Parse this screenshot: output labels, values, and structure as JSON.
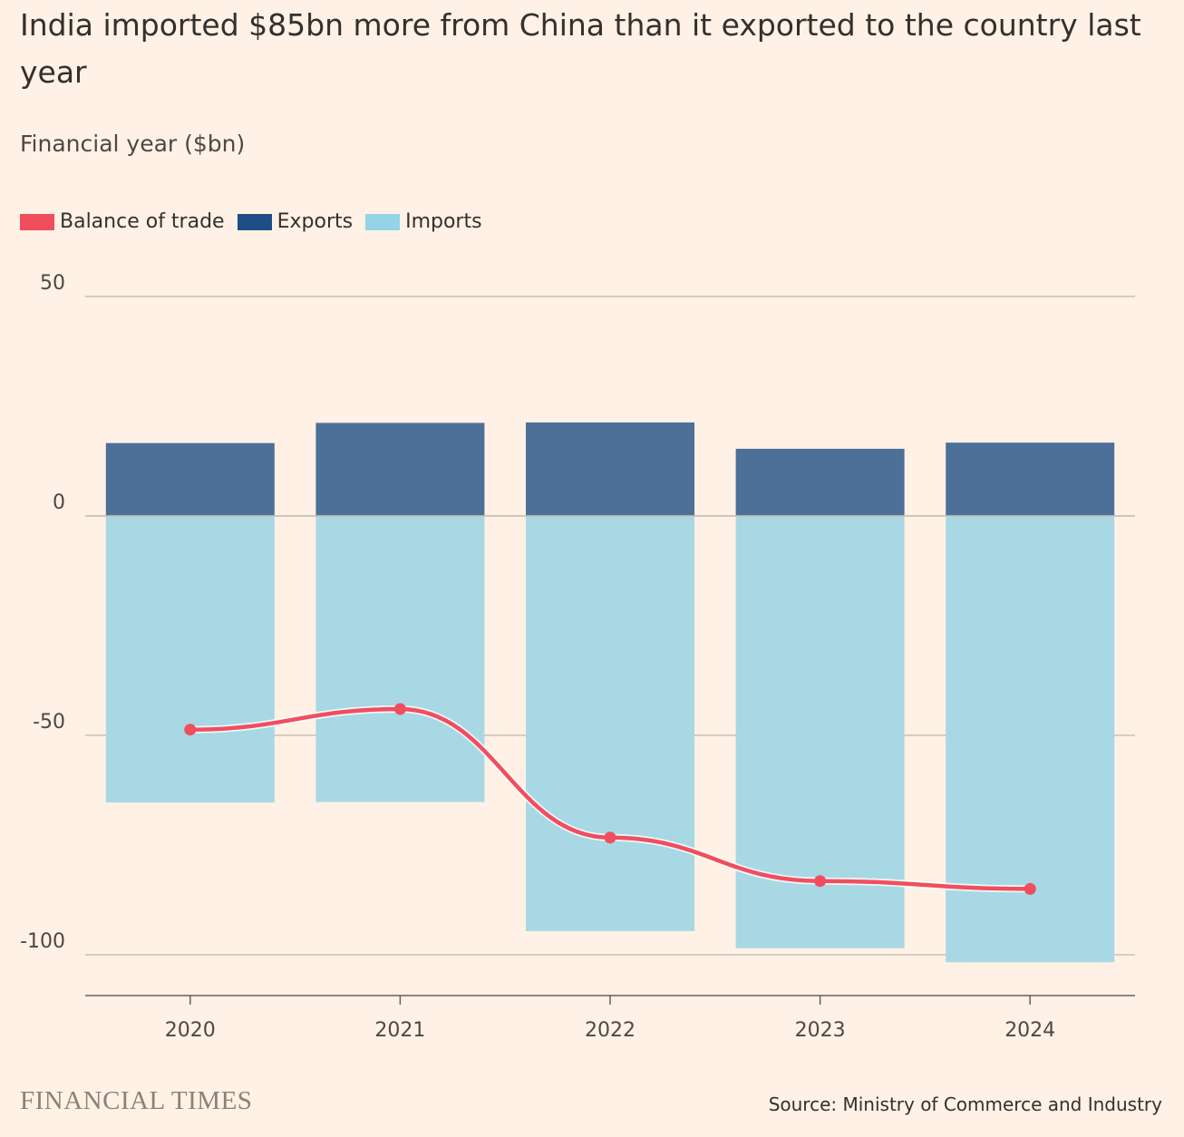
{
  "title": "India imported $85bn more from China than it exported to the country last year",
  "subtitle": "Financial year ($bn)",
  "legend": [
    {
      "label": "Balance of trade",
      "color": "#f04e5e"
    },
    {
      "label": "Exports",
      "color": "#1f4e87"
    },
    {
      "label": "Imports",
      "color": "#95d3e6"
    }
  ],
  "source": "Source: Ministry of Commerce and Industry",
  "logo": "FINANCIAL TIMES",
  "chart_data": {
    "type": "bar",
    "categories": [
      "2020",
      "2021",
      "2022",
      "2023",
      "2024"
    ],
    "series": [
      {
        "name": "Exports",
        "type": "bar",
        "color": "#4d7099",
        "values": [
          16.6,
          21.2,
          21.3,
          15.3,
          16.7
        ]
      },
      {
        "name": "Imports",
        "type": "bar",
        "color": "#a8d8e3",
        "values": [
          -65.3,
          -65.2,
          -94.6,
          -98.5,
          -101.7
        ]
      },
      {
        "name": "Balance of trade",
        "type": "line",
        "color": "#f04e5e",
        "values": [
          -48.7,
          -44.0,
          -73.3,
          -83.2,
          -85.0
        ]
      }
    ],
    "ylim": [
      -110,
      50
    ],
    "yticks": [
      50,
      0,
      -50,
      -100
    ],
    "ytick_labels": [
      "50",
      "0",
      "-50",
      "-100"
    ],
    "grid": true,
    "legend_position": "top-left"
  }
}
